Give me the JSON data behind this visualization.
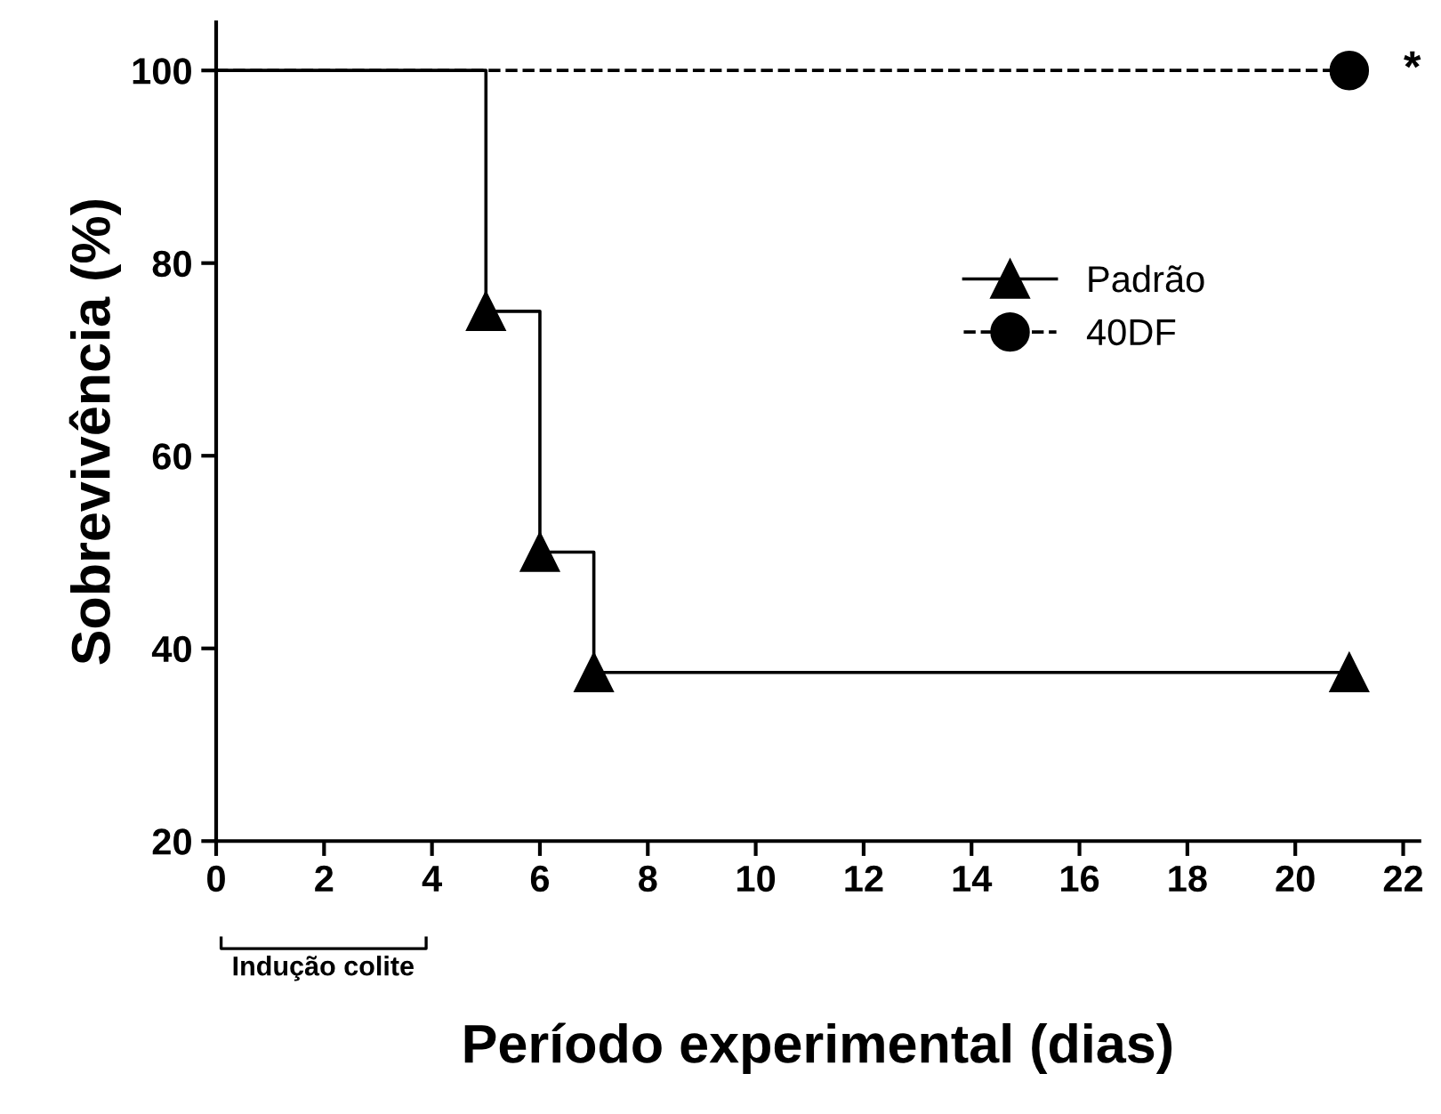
{
  "chart_data": {
    "type": "step",
    "xlabel": "Período experimental (dias)",
    "ylabel": "Sobrevivência (%)",
    "xlim": [
      0,
      22.3
    ],
    "ylim": [
      20,
      105
    ],
    "xticks": [
      0,
      2,
      4,
      6,
      8,
      10,
      12,
      14,
      16,
      18,
      20,
      22
    ],
    "yticks": [
      20,
      40,
      60,
      80,
      100
    ],
    "series": [
      {
        "name": "Padrão",
        "color": "#000000",
        "x": [
          0,
          5,
          6,
          7,
          21
        ],
        "values": [
          100,
          75,
          50,
          37.5,
          37.5
        ],
        "marker": "triangle",
        "line_style": "solid"
      },
      {
        "name": "40DF",
        "color": "#000000",
        "x": [
          0,
          21
        ],
        "values": [
          100,
          100
        ],
        "marker": "circle",
        "line_style": "dashed"
      }
    ],
    "annotations": [
      {
        "text": "*",
        "x": 21,
        "y": 100
      },
      "Indução colite"
    ],
    "legend": "right",
    "grid": false
  }
}
